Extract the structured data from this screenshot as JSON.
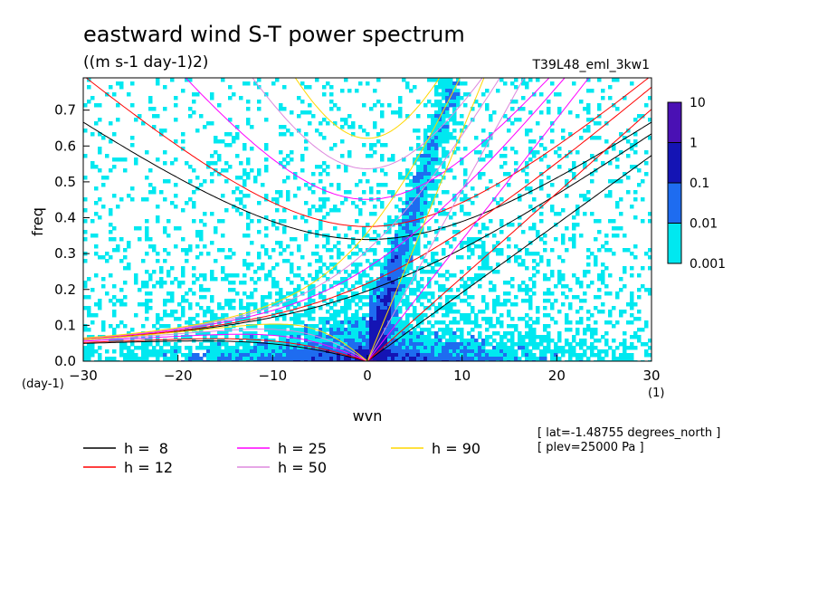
{
  "chart_data": {
    "type": "heatmap",
    "title": "eastward wind S-T power spectrum",
    "subtitle": "((m s-1 day-1)2)",
    "run_label": "T39L48_eml_3kw1",
    "xlabel": "wvn",
    "ylabel": "freq",
    "x_unit": "(1)",
    "y_unit": "(day-1)",
    "xlim": [
      -30,
      30
    ],
    "ylim": [
      0,
      0.79
    ],
    "x_ticks": [
      "-30",
      "-20",
      "-10",
      "0",
      "10",
      "20",
      "30"
    ],
    "y_ticks": [
      "0.0",
      "0.1",
      "0.2",
      "0.3",
      "0.4",
      "0.5",
      "0.6",
      "0.7"
    ],
    "colorbar": {
      "labels": [
        "0.001",
        "0.01",
        "0.1",
        "1",
        "10"
      ],
      "colors": [
        "#00e8f0",
        "#1e6cf0",
        "#1414b4",
        "#4a10b4"
      ]
    },
    "dispersion_curves": [
      {
        "name": "h =  8",
        "h": 8,
        "color": "#000000"
      },
      {
        "name": "h = 12",
        "h": 12,
        "color": "#ff0000"
      },
      {
        "name": "h = 25",
        "h": 25,
        "color": "#ff00ff"
      },
      {
        "name": "h = 50",
        "h": 50,
        "color": "#dd88dd"
      },
      {
        "name": "h = 90",
        "h": 90,
        "color": "#ffd700"
      }
    ],
    "info": [
      "[ lat=-1.48755 degrees_north ]",
      "[ plev=25000 Pa ]"
    ],
    "grid": false
  }
}
